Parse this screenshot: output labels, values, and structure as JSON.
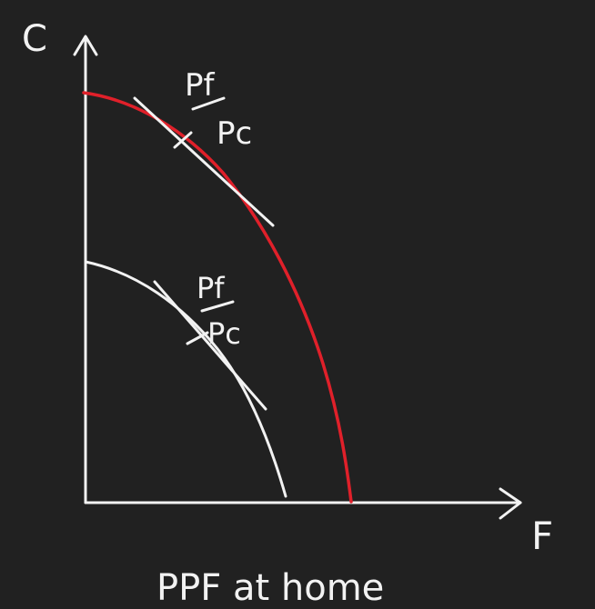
{
  "diagram": {
    "y_axis_label": "C",
    "x_axis_label": "F",
    "caption": "PPF at home",
    "price_ratio_numerator": "Pf",
    "price_ratio_denominator": "Pc",
    "colors": {
      "background": "#212121",
      "ink": "#f2f2f2",
      "outer_ppf": "#e0202a"
    }
  }
}
